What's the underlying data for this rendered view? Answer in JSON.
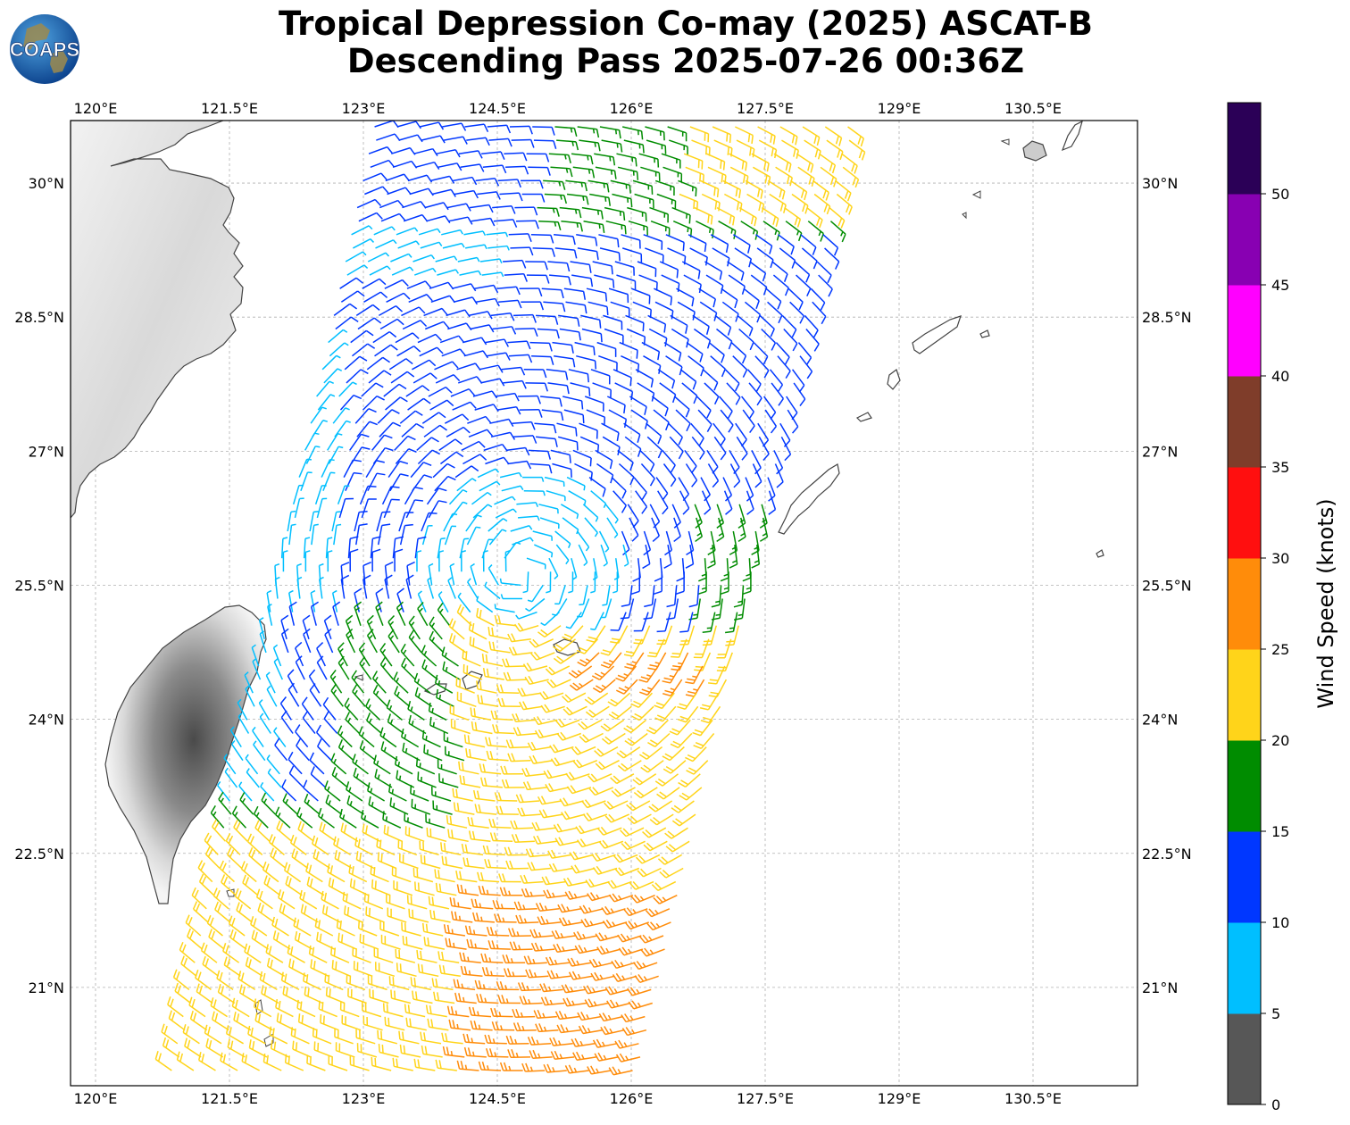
{
  "header": {
    "title_line1": "Tropical Depression Co-may (2025) ASCAT-B",
    "title_line2": "Descending Pass 2025-07-26 00:36Z"
  },
  "logo": {
    "text": "COAPS",
    "icon": "globe-logo-icon"
  },
  "map": {
    "lon_labels": [
      "120°E",
      "121.5°E",
      "123°E",
      "124.5°E",
      "126°E",
      "127.5°E",
      "129°E",
      "130.5°E"
    ],
    "lat_labels": [
      "30°N",
      "28.5°N",
      "27°N",
      "25.5°N",
      "24°N",
      "22.5°N",
      "21°N"
    ],
    "lon_values": [
      120,
      121.5,
      123,
      124.5,
      126,
      127.5,
      129,
      130.5
    ],
    "lat_values": [
      30,
      28.5,
      27,
      25.5,
      24,
      22.5,
      21
    ],
    "lon_range": [
      119.72,
      131.67
    ],
    "lat_range": [
      19.9,
      30.7
    ],
    "grid": true
  },
  "colorbar": {
    "label": "Wind Speed (knots)",
    "ticks": [
      "0",
      "5",
      "10",
      "15",
      "20",
      "25",
      "30",
      "35",
      "40",
      "45",
      "50"
    ],
    "bins": [
      {
        "min": 0,
        "max": 5,
        "color": "#575757"
      },
      {
        "min": 5,
        "max": 10,
        "color": "#00bfff"
      },
      {
        "min": 10,
        "max": 15,
        "color": "#0037ff"
      },
      {
        "min": 15,
        "max": 20,
        "color": "#008c00"
      },
      {
        "min": 20,
        "max": 25,
        "color": "#ffd41a"
      },
      {
        "min": 25,
        "max": 30,
        "color": "#ff8c0a"
      },
      {
        "min": 30,
        "max": 35,
        "color": "#ff0f0f"
      },
      {
        "min": 35,
        "max": 40,
        "color": "#7f3d2a"
      },
      {
        "min": 40,
        "max": 45,
        "color": "#ff00ff"
      },
      {
        "min": 45,
        "max": 50,
        "color": "#8800b2"
      },
      {
        "min": 50,
        "max": 55,
        "color": "#2b0057"
      }
    ]
  },
  "colors": {
    "land_outline": "#444444",
    "grid": "#b0b0b0"
  }
}
